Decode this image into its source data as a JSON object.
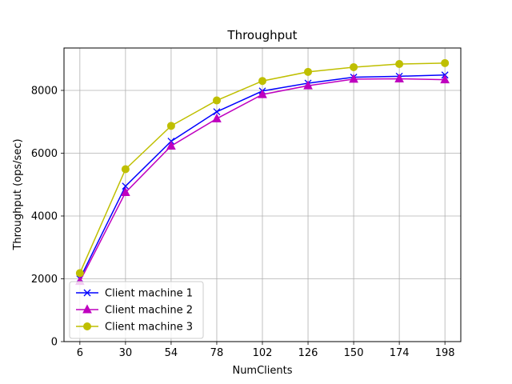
{
  "chart_data": {
    "type": "line",
    "title": "Throughput",
    "xlabel": "NumClients",
    "ylabel": "Throughput (ops/sec)",
    "x": [
      6,
      30,
      54,
      78,
      102,
      126,
      150,
      174,
      198
    ],
    "x_ticks": [
      "6",
      "30",
      "54",
      "78",
      "102",
      "126",
      "150",
      "174",
      "198"
    ],
    "ylim": [
      0,
      9350
    ],
    "y_ticks": [
      0,
      2000,
      4000,
      6000,
      8000
    ],
    "grid": true,
    "legend_position": "lower-left",
    "series": [
      {
        "name": "Client machine 1",
        "color": "#0000ff",
        "marker": "x",
        "values": [
          2000,
          4950,
          6380,
          7320,
          7980,
          8230,
          8420,
          8450,
          8490
        ]
      },
      {
        "name": "Client machine 2",
        "color": "#bf00bf",
        "marker": "triangle",
        "values": [
          1920,
          4750,
          6230,
          7100,
          7870,
          8150,
          8360,
          8370,
          8340
        ]
      },
      {
        "name": "Client machine 3",
        "color": "#bfbf00",
        "marker": "circle",
        "values": [
          2180,
          5490,
          6870,
          7680,
          8300,
          8590,
          8740,
          8840,
          8870
        ]
      }
    ]
  }
}
